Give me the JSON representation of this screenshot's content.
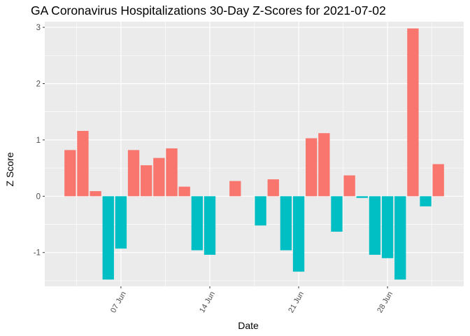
{
  "chart_data": {
    "type": "bar",
    "title": "GA Coronavirus Hospitalizations 30-Day Z-Scores for 2021-07-02",
    "xlabel": "Date",
    "ylabel": "Z Score",
    "x_ticks": [
      {
        "date": "2021-06-07",
        "label": "07 Jun"
      },
      {
        "date": "2021-06-14",
        "label": "14 Jun"
      },
      {
        "date": "2021-06-21",
        "label": "21 Jun"
      },
      {
        "date": "2021-06-28",
        "label": "28 Jun"
      }
    ],
    "y_ticks": [
      -1,
      0,
      1,
      2,
      3
    ],
    "ylim": [
      -1.6,
      3.1
    ],
    "xlim": [
      "2021-06-01",
      "2021-07-04"
    ],
    "grid": true,
    "colors": {
      "positive": "#F8766D",
      "negative": "#00BFC4",
      "panel": "#EBEBEB",
      "grid": "#FFFFFF"
    },
    "series": [
      {
        "dates": [
          "2021-06-03",
          "2021-06-04",
          "2021-06-05",
          "2021-06-06",
          "2021-06-07",
          "2021-06-08",
          "2021-06-09",
          "2021-06-10",
          "2021-06-11",
          "2021-06-12",
          "2021-06-13",
          "2021-06-14",
          "2021-06-15",
          "2021-06-16",
          "2021-06-17",
          "2021-06-18",
          "2021-06-19",
          "2021-06-20",
          "2021-06-21",
          "2021-06-22",
          "2021-06-23",
          "2021-06-24",
          "2021-06-25",
          "2021-06-26",
          "2021-06-27",
          "2021-06-28",
          "2021-06-29",
          "2021-06-30",
          "2021-07-01",
          "2021-07-02"
        ],
        "values": [
          0.82,
          1.16,
          0.09,
          -1.48,
          -0.93,
          0.82,
          0.55,
          0.68,
          0.85,
          0.17,
          -0.96,
          -1.04,
          0.0,
          0.27,
          0.0,
          -0.52,
          0.3,
          -0.96,
          -1.34,
          1.03,
          1.12,
          -0.63,
          0.37,
          -0.03,
          -1.04,
          -1.1,
          -1.48,
          2.98,
          -0.18,
          0.57
        ]
      }
    ]
  }
}
